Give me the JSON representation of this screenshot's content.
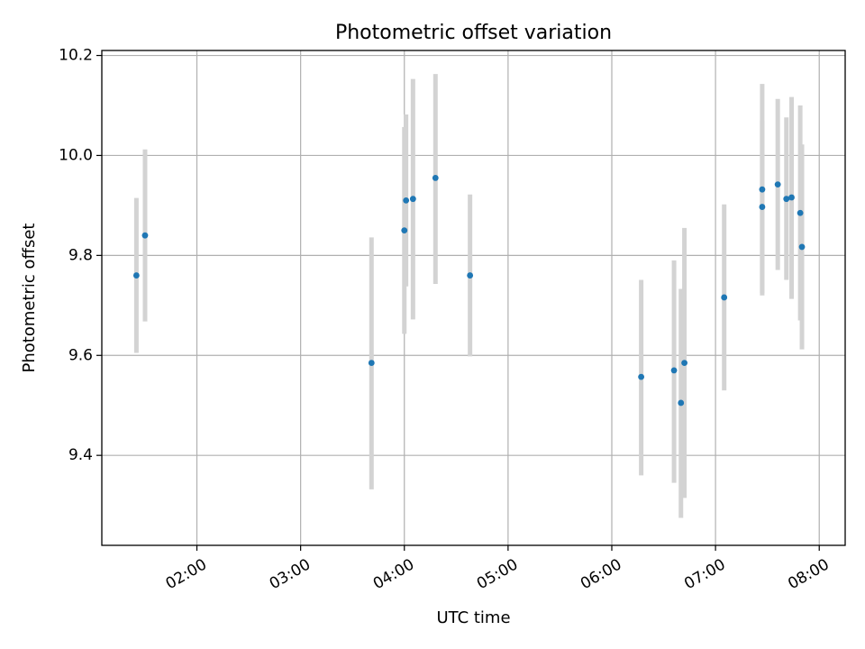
{
  "chart_data": {
    "type": "scatter",
    "title": "Photometric offset variation",
    "xlabel": "UTC time",
    "ylabel": "Photometric offset",
    "grid": true,
    "xlim": [
      "01:05",
      "08:15"
    ],
    "ylim": [
      9.22,
      10.21
    ],
    "xticks": [
      "02:00",
      "03:00",
      "04:00",
      "05:00",
      "06:00",
      "07:00",
      "08:00"
    ],
    "yticks": [
      "9.4",
      "9.6",
      "9.8",
      "10.0",
      "10.2"
    ],
    "colors": {
      "point": "#1f77b4",
      "errorbar": "#d3d3d3",
      "grid": "#b0b0b0"
    },
    "points": [
      {
        "x": "01:25",
        "y": 9.76,
        "ylo": 9.605,
        "yhi": 9.915
      },
      {
        "x": "01:30",
        "y": 9.84,
        "ylo": 9.668,
        "yhi": 10.012
      },
      {
        "x": "03:41",
        "y": 9.585,
        "ylo": 9.332,
        "yhi": 9.836
      },
      {
        "x": "04:00",
        "y": 9.85,
        "ylo": 9.643,
        "yhi": 10.057
      },
      {
        "x": "04:01",
        "y": 9.91,
        "ylo": 9.738,
        "yhi": 10.082
      },
      {
        "x": "04:05",
        "y": 9.913,
        "ylo": 9.672,
        "yhi": 10.153
      },
      {
        "x": "04:18",
        "y": 9.955,
        "ylo": 9.743,
        "yhi": 10.163
      },
      {
        "x": "04:38",
        "y": 9.76,
        "ylo": 9.598,
        "yhi": 9.922
      },
      {
        "x": "06:17",
        "y": 9.557,
        "ylo": 9.36,
        "yhi": 9.751
      },
      {
        "x": "06:36",
        "y": 9.57,
        "ylo": 9.345,
        "yhi": 9.79
      },
      {
        "x": "06:40",
        "y": 9.505,
        "ylo": 9.275,
        "yhi": 9.733
      },
      {
        "x": "06:42",
        "y": 9.585,
        "ylo": 9.315,
        "yhi": 9.855
      },
      {
        "x": "07:05",
        "y": 9.716,
        "ylo": 9.53,
        "yhi": 9.902
      },
      {
        "x": "07:27",
        "y": 9.932,
        "ylo": 9.72,
        "yhi": 10.143
      },
      {
        "x": "07:27",
        "y": 9.897,
        "ylo": 9.725,
        "yhi": 10.07
      },
      {
        "x": "07:36",
        "y": 9.942,
        "ylo": 9.771,
        "yhi": 10.113
      },
      {
        "x": "07:41",
        "y": 9.913,
        "ylo": 9.751,
        "yhi": 10.076
      },
      {
        "x": "07:44",
        "y": 9.916,
        "ylo": 9.713,
        "yhi": 10.117
      },
      {
        "x": "07:49",
        "y": 9.885,
        "ylo": 9.67,
        "yhi": 10.1
      },
      {
        "x": "07:50",
        "y": 9.817,
        "ylo": 9.612,
        "yhi": 10.022
      }
    ]
  }
}
